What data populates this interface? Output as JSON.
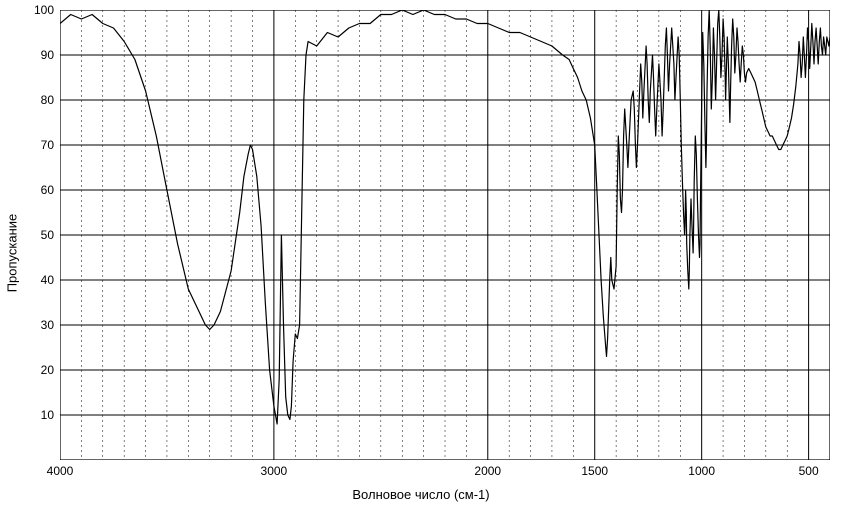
{
  "spectrum_chart": {
    "type": "line",
    "xlabel": "Волновое число (см-1)",
    "ylabel": "Пропускание",
    "xlim": [
      4000,
      400
    ],
    "ylim": [
      0,
      100
    ],
    "xtick_major": [
      4000,
      3000,
      2000,
      1500,
      1000,
      500
    ],
    "xtick_minor_step": 100,
    "ytick_major": [
      10,
      20,
      30,
      40,
      50,
      60,
      70,
      80,
      90,
      100
    ],
    "background_color": "#ffffff",
    "grid_major_color": "#000000",
    "grid_minor_color": "#000000",
    "grid_minor_dash": "2,3",
    "line_color": "#000000",
    "line_width": 1.2,
    "label_fontsize": 13,
    "tick_fontsize": 12,
    "series": [
      [
        4000,
        97
      ],
      [
        3950,
        99
      ],
      [
        3900,
        98
      ],
      [
        3850,
        99
      ],
      [
        3800,
        97
      ],
      [
        3750,
        96
      ],
      [
        3700,
        93
      ],
      [
        3650,
        89
      ],
      [
        3600,
        82
      ],
      [
        3550,
        72
      ],
      [
        3500,
        60
      ],
      [
        3450,
        48
      ],
      [
        3400,
        38
      ],
      [
        3350,
        33
      ],
      [
        3320,
        30
      ],
      [
        3300,
        29
      ],
      [
        3280,
        30
      ],
      [
        3250,
        33
      ],
      [
        3200,
        42
      ],
      [
        3160,
        55
      ],
      [
        3140,
        63
      ],
      [
        3120,
        68
      ],
      [
        3110,
        70
      ],
      [
        3100,
        69
      ],
      [
        3080,
        63
      ],
      [
        3060,
        52
      ],
      [
        3040,
        35
      ],
      [
        3020,
        20
      ],
      [
        3000,
        12
      ],
      [
        2985,
        8
      ],
      [
        2975,
        18
      ],
      [
        2965,
        50
      ],
      [
        2955,
        30
      ],
      [
        2945,
        14
      ],
      [
        2935,
        10
      ],
      [
        2925,
        9
      ],
      [
        2918,
        12
      ],
      [
        2910,
        22
      ],
      [
        2900,
        28
      ],
      [
        2890,
        27
      ],
      [
        2880,
        30
      ],
      [
        2870,
        55
      ],
      [
        2860,
        80
      ],
      [
        2850,
        90
      ],
      [
        2840,
        93
      ],
      [
        2800,
        92
      ],
      [
        2750,
        95
      ],
      [
        2700,
        94
      ],
      [
        2650,
        96
      ],
      [
        2600,
        97
      ],
      [
        2550,
        97
      ],
      [
        2500,
        99
      ],
      [
        2450,
        99
      ],
      [
        2400,
        100
      ],
      [
        2350,
        99
      ],
      [
        2300,
        100
      ],
      [
        2250,
        99
      ],
      [
        2200,
        99
      ],
      [
        2150,
        98
      ],
      [
        2100,
        98
      ],
      [
        2050,
        97
      ],
      [
        2000,
        97
      ],
      [
        1950,
        96
      ],
      [
        1900,
        95
      ],
      [
        1850,
        95
      ],
      [
        1800,
        94
      ],
      [
        1750,
        93
      ],
      [
        1700,
        92
      ],
      [
        1650,
        90
      ],
      [
        1620,
        89
      ],
      [
        1600,
        87
      ],
      [
        1580,
        85
      ],
      [
        1560,
        82
      ],
      [
        1540,
        80
      ],
      [
        1520,
        76
      ],
      [
        1500,
        70
      ],
      [
        1490,
        60
      ],
      [
        1480,
        50
      ],
      [
        1470,
        40
      ],
      [
        1460,
        32
      ],
      [
        1450,
        26
      ],
      [
        1445,
        23
      ],
      [
        1440,
        27
      ],
      [
        1430,
        40
      ],
      [
        1425,
        45
      ],
      [
        1420,
        40
      ],
      [
        1410,
        38
      ],
      [
        1400,
        43
      ],
      [
        1395,
        60
      ],
      [
        1390,
        72
      ],
      [
        1385,
        68
      ],
      [
        1380,
        58
      ],
      [
        1375,
        55
      ],
      [
        1370,
        60
      ],
      [
        1365,
        72
      ],
      [
        1360,
        78
      ],
      [
        1350,
        70
      ],
      [
        1345,
        65
      ],
      [
        1340,
        70
      ],
      [
        1330,
        80
      ],
      [
        1320,
        82
      ],
      [
        1315,
        78
      ],
      [
        1310,
        70
      ],
      [
        1305,
        65
      ],
      [
        1300,
        70
      ],
      [
        1290,
        82
      ],
      [
        1285,
        88
      ],
      [
        1280,
        84
      ],
      [
        1275,
        76
      ],
      [
        1270,
        82
      ],
      [
        1260,
        92
      ],
      [
        1255,
        88
      ],
      [
        1250,
        80
      ],
      [
        1245,
        75
      ],
      [
        1240,
        82
      ],
      [
        1230,
        90
      ],
      [
        1225,
        85
      ],
      [
        1220,
        78
      ],
      [
        1215,
        72
      ],
      [
        1210,
        78
      ],
      [
        1200,
        88
      ],
      [
        1190,
        80
      ],
      [
        1185,
        72
      ],
      [
        1180,
        78
      ],
      [
        1170,
        92
      ],
      [
        1165,
        96
      ],
      [
        1160,
        90
      ],
      [
        1155,
        82
      ],
      [
        1150,
        88
      ],
      [
        1140,
        96
      ],
      [
        1130,
        88
      ],
      [
        1125,
        80
      ],
      [
        1120,
        85
      ],
      [
        1110,
        94
      ],
      [
        1105,
        90
      ],
      [
        1100,
        80
      ],
      [
        1095,
        70
      ],
      [
        1090,
        62
      ],
      [
        1085,
        55
      ],
      [
        1080,
        50
      ],
      [
        1078,
        52
      ],
      [
        1075,
        60
      ],
      [
        1072,
        55
      ],
      [
        1070,
        48
      ],
      [
        1065,
        42
      ],
      [
        1060,
        38
      ],
      [
        1058,
        42
      ],
      [
        1055,
        50
      ],
      [
        1050,
        58
      ],
      [
        1045,
        52
      ],
      [
        1040,
        46
      ],
      [
        1038,
        50
      ],
      [
        1035,
        62
      ],
      [
        1030,
        72
      ],
      [
        1025,
        68
      ],
      [
        1020,
        58
      ],
      [
        1015,
        50
      ],
      [
        1010,
        45
      ],
      [
        1008,
        48
      ],
      [
        1005,
        60
      ],
      [
        1000,
        80
      ],
      [
        995,
        95
      ],
      [
        990,
        88
      ],
      [
        985,
        75
      ],
      [
        980,
        65
      ],
      [
        978,
        70
      ],
      [
        975,
        82
      ],
      [
        970,
        94
      ],
      [
        965,
        100
      ],
      [
        960,
        92
      ],
      [
        955,
        78
      ],
      [
        950,
        85
      ],
      [
        945,
        96
      ],
      [
        940,
        90
      ],
      [
        935,
        80
      ],
      [
        930,
        88
      ],
      [
        925,
        97
      ],
      [
        920,
        100
      ],
      [
        915,
        94
      ],
      [
        910,
        85
      ],
      [
        905,
        90
      ],
      [
        900,
        98
      ],
      [
        895,
        94
      ],
      [
        890,
        85
      ],
      [
        888,
        80
      ],
      [
        885,
        86
      ],
      [
        880,
        94
      ],
      [
        875,
        88
      ],
      [
        870,
        78
      ],
      [
        868,
        75
      ],
      [
        865,
        82
      ],
      [
        860,
        92
      ],
      [
        855,
        98
      ],
      [
        850,
        94
      ],
      [
        845,
        86
      ],
      [
        840,
        90
      ],
      [
        835,
        96
      ],
      [
        830,
        93
      ],
      [
        825,
        88
      ],
      [
        820,
        84
      ],
      [
        815,
        88
      ],
      [
        810,
        92
      ],
      [
        805,
        90
      ],
      [
        800,
        86
      ],
      [
        795,
        84
      ],
      [
        790,
        86
      ],
      [
        780,
        87
      ],
      [
        770,
        86
      ],
      [
        760,
        85
      ],
      [
        750,
        84
      ],
      [
        740,
        82
      ],
      [
        730,
        80
      ],
      [
        720,
        78
      ],
      [
        710,
        76
      ],
      [
        700,
        74
      ],
      [
        690,
        73
      ],
      [
        680,
        72
      ],
      [
        670,
        72
      ],
      [
        660,
        71
      ],
      [
        650,
        70
      ],
      [
        640,
        69
      ],
      [
        630,
        69
      ],
      [
        620,
        70
      ],
      [
        610,
        71
      ],
      [
        600,
        72
      ],
      [
        590,
        74
      ],
      [
        580,
        76
      ],
      [
        570,
        79
      ],
      [
        560,
        83
      ],
      [
        550,
        88
      ],
      [
        545,
        93
      ],
      [
        540,
        90
      ],
      [
        535,
        85
      ],
      [
        530,
        88
      ],
      [
        525,
        94
      ],
      [
        520,
        90
      ],
      [
        515,
        85
      ],
      [
        510,
        90
      ],
      [
        505,
        96
      ],
      [
        500,
        93
      ],
      [
        495,
        87
      ],
      [
        490,
        92
      ],
      [
        485,
        97
      ],
      [
        480,
        93
      ],
      [
        475,
        88
      ],
      [
        470,
        93
      ],
      [
        465,
        96
      ],
      [
        460,
        92
      ],
      [
        455,
        88
      ],
      [
        450,
        93
      ],
      [
        445,
        96
      ],
      [
        440,
        92
      ],
      [
        435,
        90
      ],
      [
        430,
        94
      ],
      [
        425,
        92
      ],
      [
        420,
        90
      ],
      [
        415,
        94
      ],
      [
        410,
        93
      ],
      [
        405,
        92
      ],
      [
        400,
        94
      ]
    ]
  }
}
